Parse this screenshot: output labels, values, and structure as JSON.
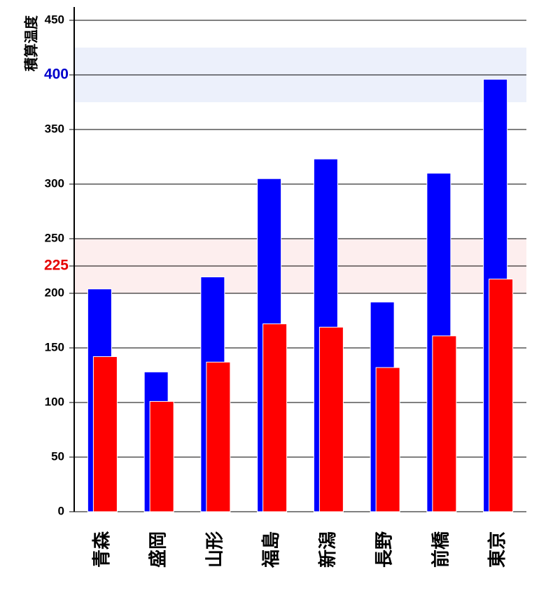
{
  "chart_data": {
    "type": "bar",
    "ylabel": "積算温度",
    "ylim": [
      0,
      460
    ],
    "yticks": [
      0,
      50,
      100,
      150,
      200,
      250,
      300,
      350,
      450
    ],
    "grid": true,
    "categories": [
      "青森",
      "盛岡",
      "山形",
      "福島",
      "新潟",
      "長野",
      "前橋",
      "東京"
    ],
    "series": [
      {
        "color": "#0000ff",
        "values": [
          204,
          128,
          215,
          305,
          323,
          192,
          310,
          396
        ]
      },
      {
        "color": "#ff0000",
        "values": [
          142,
          101,
          137,
          172,
          169,
          132,
          161,
          213
        ]
      }
    ],
    "reference_lines": [
      {
        "value": 400,
        "label": "400",
        "label_color": "#0000cc",
        "band": [
          375,
          425
        ],
        "band_color": "#ecf0fb"
      },
      {
        "value": 225,
        "label": "225",
        "label_color": "#e60000",
        "band": [
          200,
          250
        ],
        "band_color": "#fdeeee"
      }
    ]
  }
}
